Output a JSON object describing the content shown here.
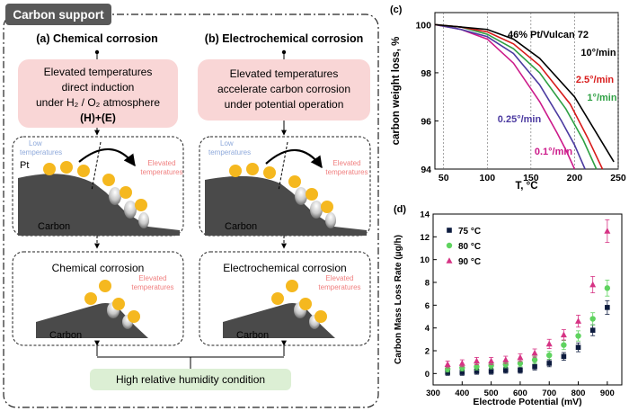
{
  "section_label": "Carbon support",
  "chemical": {
    "heading": "(a) Chemical corrosion",
    "box_lines": [
      "Elevated temperatures",
      "direct induction",
      "under H₂ / O₂ atmosphere",
      "(H)+(E)"
    ],
    "low_label": [
      "Low",
      "temperatures"
    ],
    "pt_label": "Pt",
    "elevated_label": [
      "Elevated",
      "temperatures"
    ],
    "carbon_label": "Carbon",
    "result_title": "Chemical corrosion",
    "result_elevated": [
      "Elevated",
      "temperatures"
    ],
    "result_carbon": "Carbon"
  },
  "electrochemical": {
    "heading": "(b) Electrochemical corrosion",
    "box_lines": [
      "Elevated temperatures",
      "accelerate carbon corrosion",
      "under potential operation"
    ],
    "low_label": [
      "Low",
      "temperatures"
    ],
    "elevated_label": [
      "Elevated",
      "temperatures"
    ],
    "carbon_label": "Carbon",
    "result_title": "Electrochemical corrosion",
    "result_elevated": [
      "Elevated",
      "temperatures"
    ],
    "result_carbon": "Carbon"
  },
  "humidity_label": "High relative humidity condition",
  "colors": {
    "pink_box": "#f9d6d6",
    "green_box": "#dcefd4",
    "pt_particle": "#f5b81f",
    "carbon": "#4a4a4a",
    "low_text": "#8ea9db",
    "elevated_text": "#f08080",
    "section_tab": "#595959"
  },
  "chart_data": [
    {
      "panel_label": "(c)",
      "type": "line",
      "title": "46% Pt/Vulcan 72",
      "xlabel": "T, °C",
      "ylabel": "carbon weight loss, %",
      "xlim": [
        40,
        250
      ],
      "ylim": [
        94,
        100.5
      ],
      "xticks": [
        50,
        100,
        150,
        200,
        250
      ],
      "yticks": [
        94,
        96,
        98,
        100
      ],
      "series": [
        {
          "name": "0.1°/min",
          "color": "#cc1a8a",
          "x": [
            40,
            70,
            100,
            130,
            160,
            180,
            190,
            200
          ],
          "y": [
            100,
            99.8,
            99.4,
            98.4,
            96.8,
            95.5,
            94.8,
            94
          ]
        },
        {
          "name": "0.25°/min",
          "color": "#4b3aa0",
          "x": [
            40,
            70,
            100,
            130,
            160,
            185,
            200,
            212
          ],
          "y": [
            100,
            99.8,
            99.5,
            98.8,
            97.5,
            96.0,
            95.0,
            94
          ]
        },
        {
          "name": "1°/min",
          "color": "#2ea043",
          "x": [
            40,
            70,
            100,
            130,
            160,
            190,
            210,
            225
          ],
          "y": [
            100,
            99.9,
            99.6,
            99.0,
            98.0,
            96.5,
            95.2,
            94
          ]
        },
        {
          "name": "2.5°/min",
          "color": "#d81b1b",
          "x": [
            40,
            70,
            100,
            130,
            160,
            195,
            215,
            232
          ],
          "y": [
            100,
            99.9,
            99.7,
            99.2,
            98.3,
            96.7,
            95.3,
            94
          ]
        },
        {
          "name": "10°/min",
          "color": "#000000",
          "x": [
            40,
            70,
            100,
            130,
            160,
            200,
            225,
            245
          ],
          "y": [
            100,
            99.9,
            99.8,
            99.4,
            98.6,
            97.0,
            95.5,
            94.3
          ]
        }
      ],
      "annotations": [
        {
          "text": "10°/min",
          "color": "#000000"
        },
        {
          "text": "2.5°/min",
          "color": "#d81b1b"
        },
        {
          "text": "1°/min",
          "color": "#2ea043"
        },
        {
          "text": "0.25°/min",
          "color": "#4b3aa0"
        },
        {
          "text": "0.1°/min",
          "color": "#cc1a8a"
        }
      ]
    },
    {
      "panel_label": "(d)",
      "type": "scatter",
      "xlabel": "Electrode Potential (mV)",
      "ylabel": "Carbon Mass Loss Rate (μg/h)",
      "xlim": [
        300,
        950
      ],
      "ylim": [
        -1,
        14
      ],
      "xticks": [
        300,
        400,
        500,
        600,
        700,
        800,
        900
      ],
      "yticks": [
        0,
        2,
        4,
        6,
        8,
        10,
        12,
        14
      ],
      "x": [
        350,
        400,
        450,
        500,
        550,
        600,
        650,
        700,
        750,
        800,
        850,
        900
      ],
      "series": [
        {
          "name": "75 °C",
          "marker": "square",
          "color": "#0d1b3e",
          "values": [
            0.1,
            0.1,
            0.2,
            0.2,
            0.3,
            0.3,
            0.6,
            0.9,
            1.5,
            2.3,
            3.8,
            5.8
          ]
        },
        {
          "name": "80 °C",
          "marker": "circle",
          "color": "#5fd35f",
          "values": [
            0.4,
            0.5,
            0.6,
            0.7,
            0.8,
            0.9,
            1.2,
            1.6,
            2.5,
            3.3,
            4.8,
            7.5
          ]
        },
        {
          "name": "90 °C",
          "marker": "triangle",
          "color": "#d63384",
          "values": [
            0.8,
            0.9,
            1.1,
            1.1,
            1.2,
            1.4,
            1.8,
            2.6,
            3.4,
            4.6,
            7.8,
            12.5
          ]
        }
      ]
    }
  ]
}
